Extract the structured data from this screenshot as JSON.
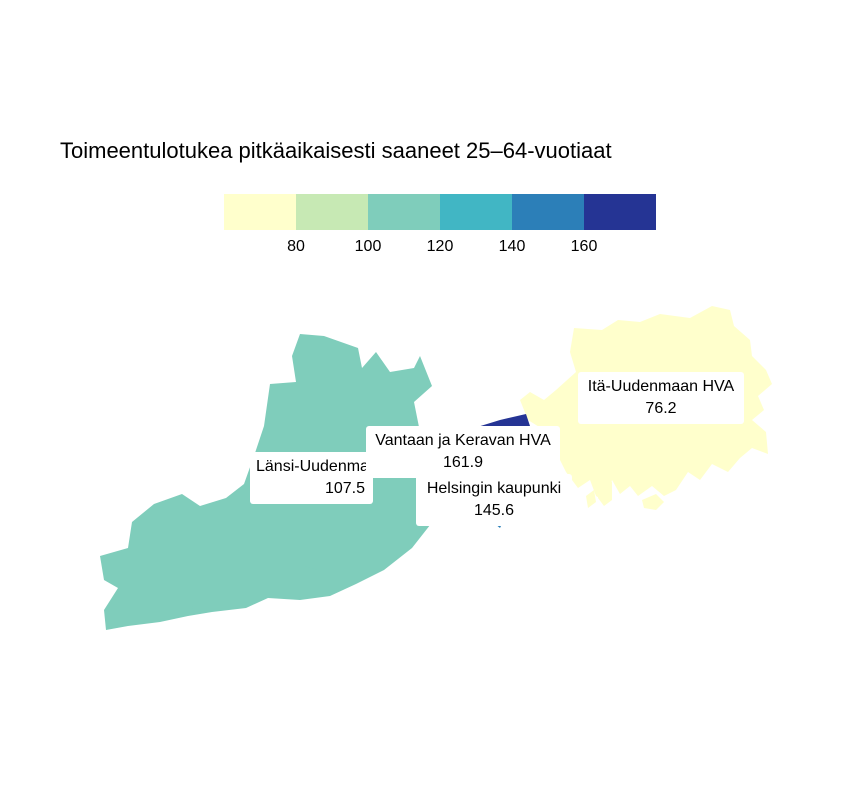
{
  "title": "Toimeentulotukea pitkäaikaisesti saaneet 25–64-vuotiaat",
  "legend": {
    "colors": [
      "#ffffcc",
      "#c7e9b4",
      "#7fcdbb",
      "#41b6c4",
      "#2c7fb8",
      "#253494"
    ],
    "ticks": [
      "80",
      "100",
      "120",
      "140",
      "160"
    ]
  },
  "regions": [
    {
      "name": "Länsi-Uudenmaan HVA",
      "value": "107.5",
      "color": "#7fcdbb"
    },
    {
      "name": "Vantaan ja Keravan HVA",
      "value": "161.9",
      "color": "#253494"
    },
    {
      "name": "Helsingin kaupunki",
      "value": "145.6",
      "color": "#2c7fb8"
    },
    {
      "name": "Itä-Uudenmaan HVA",
      "value": "76.2",
      "color": "#ffffcc"
    }
  ]
}
